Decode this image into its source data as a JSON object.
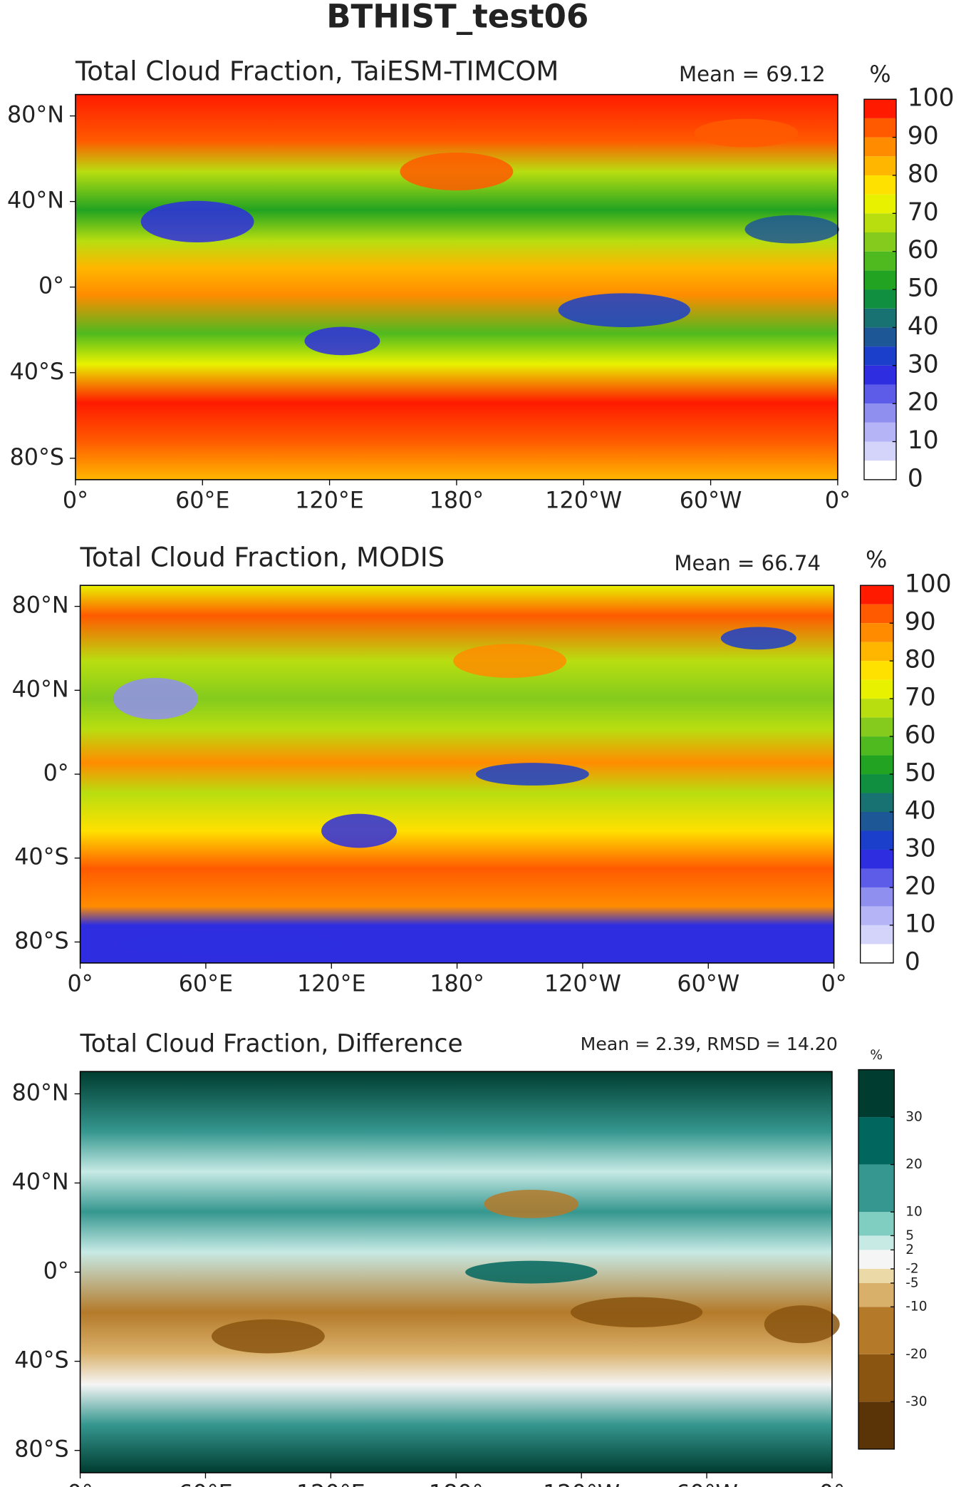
{
  "title": "BTHIST_test06",
  "lon_ticks": [
    "0°",
    "60°E",
    "120°E",
    "180°",
    "120°W",
    "60°W",
    "0°"
  ],
  "lat_ticks": [
    "80°N",
    "40°N",
    "0°",
    "40°S",
    "80°S"
  ],
  "panels": [
    {
      "title": "Total Cloud Fraction, TaiESM-TIMCOM",
      "stat": "Mean = 69.12",
      "unit": "%",
      "colorbar": {
        "lim": [
          0,
          100
        ],
        "ticks": [
          0,
          10,
          20,
          30,
          40,
          50,
          60,
          70,
          80,
          90,
          100
        ],
        "colors": [
          "#ffffff",
          "#d4d4fb",
          "#b4b4f6",
          "#8f8ff0",
          "#5c5ce8",
          "#2e2ee0",
          "#1c3fcb",
          "#1d5796",
          "#187272",
          "#0f8f3f",
          "#22a322",
          "#4fba1f",
          "#84cb1e",
          "#b8de10",
          "#e8f200",
          "#ffe100",
          "#ffb600",
          "#ff8c00",
          "#ff5a00",
          "#ff1a00"
        ]
      }
    },
    {
      "title": "Total Cloud Fraction, MODIS",
      "stat": "Mean = 66.74",
      "unit": "%",
      "colorbar": {
        "lim": [
          0,
          100
        ],
        "ticks": [
          0,
          10,
          20,
          30,
          40,
          50,
          60,
          70,
          80,
          90,
          100
        ],
        "colors": [
          "#ffffff",
          "#d4d4fb",
          "#b4b4f6",
          "#8f8ff0",
          "#5c5ce8",
          "#2e2ee0",
          "#1c3fcb",
          "#1d5796",
          "#187272",
          "#0f8f3f",
          "#22a322",
          "#4fba1f",
          "#84cb1e",
          "#b8de10",
          "#e8f200",
          "#ffe100",
          "#ffb600",
          "#ff8c00",
          "#ff5a00",
          "#ff1a00"
        ]
      }
    },
    {
      "title": "Total Cloud Fraction, Difference",
      "stat": "Mean = 2.39, RMSD = 14.20",
      "unit": "%",
      "colorbar": {
        "lim": [
          -40,
          40
        ],
        "ticks": [
          -30,
          -20,
          -10,
          -5,
          -2,
          2,
          5,
          10,
          20,
          30
        ],
        "colors": [
          "#5a3306",
          "#8a5510",
          "#b47a2a",
          "#d9b06a",
          "#ecd9a8",
          "#f5f5f5",
          "#c7eae5",
          "#80cdc1",
          "#35978f",
          "#01665e",
          "#003c30"
        ]
      }
    }
  ]
}
